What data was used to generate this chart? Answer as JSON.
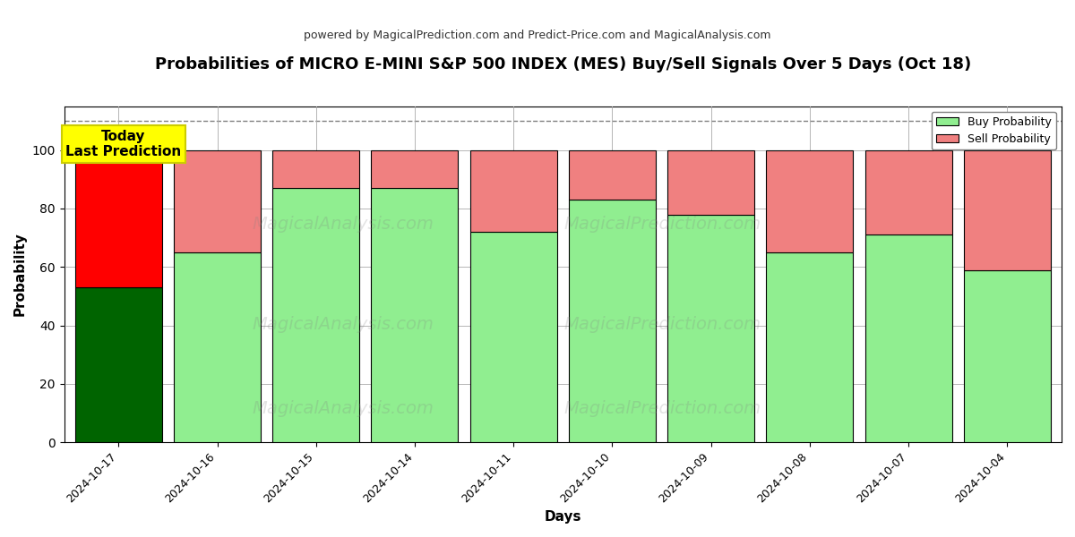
{
  "title": "Probabilities of MICRO E-MINI S&P 500 INDEX (MES) Buy/Sell Signals Over 5 Days (Oct 18)",
  "subtitle": "powered by MagicalPrediction.com and Predict-Price.com and MagicalAnalysis.com",
  "xlabel": "Days",
  "ylabel": "Probability",
  "dates": [
    "2024-10-17",
    "2024-10-16",
    "2024-10-15",
    "2024-10-14",
    "2024-10-11",
    "2024-10-10",
    "2024-10-09",
    "2024-10-08",
    "2024-10-07",
    "2024-10-04"
  ],
  "buy_probs": [
    53,
    65,
    87,
    87,
    72,
    83,
    78,
    65,
    71,
    59
  ],
  "sell_probs": [
    47,
    35,
    13,
    13,
    28,
    17,
    22,
    35,
    29,
    41
  ],
  "today_buy_color": "#006400",
  "today_sell_color": "#FF0000",
  "regular_buy_color": "#90EE90",
  "regular_sell_color": "#F08080",
  "bar_edge_color": "black",
  "bar_linewidth": 0.8,
  "grid_color": "#AAAAAA",
  "dashed_line_y": 110,
  "ylim": [
    0,
    115
  ],
  "yticks": [
    0,
    20,
    40,
    60,
    80,
    100
  ],
  "annotation_text": "Today\nLast Prediction",
  "annotation_box_color": "yellow",
  "legend_buy_label": "Buy Probability",
  "legend_sell_label": "Sell Probability",
  "figsize": [
    12.0,
    6.0
  ],
  "dpi": 100,
  "bar_width": 0.88,
  "title_fontsize": 13,
  "subtitle_fontsize": 9,
  "axis_label_fontsize": 11,
  "tick_fontsize": 9,
  "annotation_fontsize": 11
}
